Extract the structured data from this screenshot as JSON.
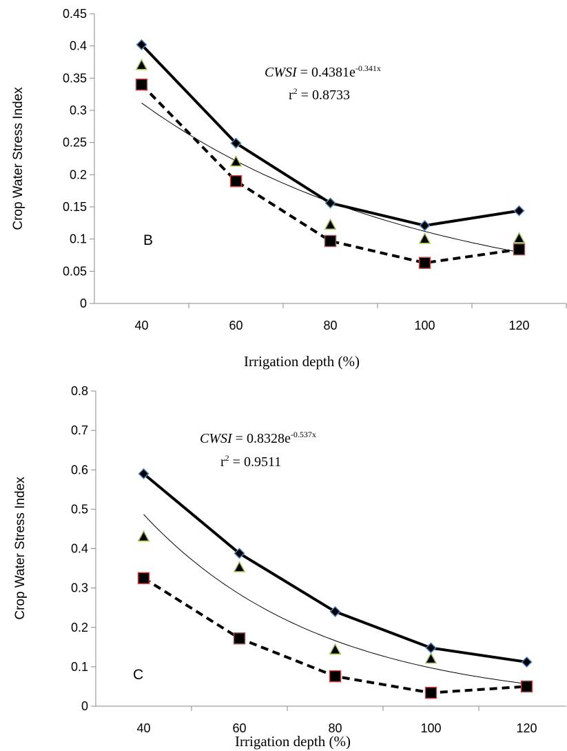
{
  "chart_data": [
    {
      "type": "line",
      "panel_label": "B",
      "xlabel": "Irrigation depth (%)",
      "ylabel": "Crop Water Stress Index",
      "x": [
        40,
        60,
        80,
        100,
        120
      ],
      "ylim": [
        0,
        0.45
      ],
      "yticks": [
        "0",
        "0.05",
        "0.1",
        "0.15",
        "0.2",
        "0.25",
        "0.3",
        "0.35",
        "0.4",
        "0.45"
      ],
      "xticks": [
        "40",
        "60",
        "80",
        "100",
        "120"
      ],
      "series": [
        {
          "values": [
            0.402,
            0.249,
            0.156,
            0.121,
            0.144
          ],
          "marker": "diamond",
          "line": "solid-thick",
          "fill": "#000000",
          "edge": "#4f81bd"
        },
        {
          "values": [
            0.37,
            0.22,
            0.122,
            0.1,
            0.101
          ],
          "marker": "triangle",
          "line": "none",
          "fill": "#000000",
          "edge": "#9bbb59"
        },
        {
          "values": [
            0.34,
            0.19,
            0.097,
            0.063,
            0.084
          ],
          "marker": "square",
          "line": "dashed-thick",
          "fill": "#000000",
          "edge": "#c0504d"
        }
      ],
      "trendline": {
        "kind": "exponential",
        "a": 0.4381,
        "b": -0.341,
        "x_index_from": 1,
        "x_index_to": 5
      },
      "equation": {
        "lhs": "CWSI",
        "mid": " = 0.4381e",
        "exp": "-0.341x",
        "r2_prefix": "r",
        "r2_sup": "2",
        "r2_rest": " = 0.8733"
      }
    },
    {
      "type": "line",
      "panel_label": "C",
      "xlabel": "Irrigation depth (%)",
      "ylabel": "Crop Water Stress Index",
      "x": [
        40,
        60,
        80,
        100,
        120
      ],
      "ylim": [
        0,
        0.8
      ],
      "yticks": [
        "0",
        "0.1",
        "0.2",
        "0.3",
        "0.4",
        "0.5",
        "0.6",
        "0.7",
        "0.8"
      ],
      "xticks": [
        "40",
        "60",
        "80",
        "100",
        "120"
      ],
      "series": [
        {
          "values": [
            0.59,
            0.388,
            0.24,
            0.148,
            0.112
          ],
          "marker": "diamond",
          "line": "solid-thick",
          "fill": "#000000",
          "edge": "#4f81bd"
        },
        {
          "values": [
            0.43,
            0.352,
            0.143,
            0.12,
            0.05
          ],
          "marker": "triangle",
          "line": "none",
          "fill": "#000000",
          "edge": "#9bbb59"
        },
        {
          "values": [
            0.325,
            0.172,
            0.076,
            0.034,
            0.05
          ],
          "marker": "square",
          "line": "dashed-thick",
          "fill": "#000000",
          "edge": "#c0504d"
        }
      ],
      "trendline": {
        "kind": "exponential",
        "a": 0.8328,
        "b": -0.537,
        "x_index_from": 1,
        "x_index_to": 5
      },
      "equation": {
        "lhs": "CWSI",
        "mid": " = 0.8328e",
        "exp": "-0.537x",
        "r2_prefix": "r",
        "r2_sup": "2",
        "r2_rest": " = 0.9511"
      }
    }
  ]
}
